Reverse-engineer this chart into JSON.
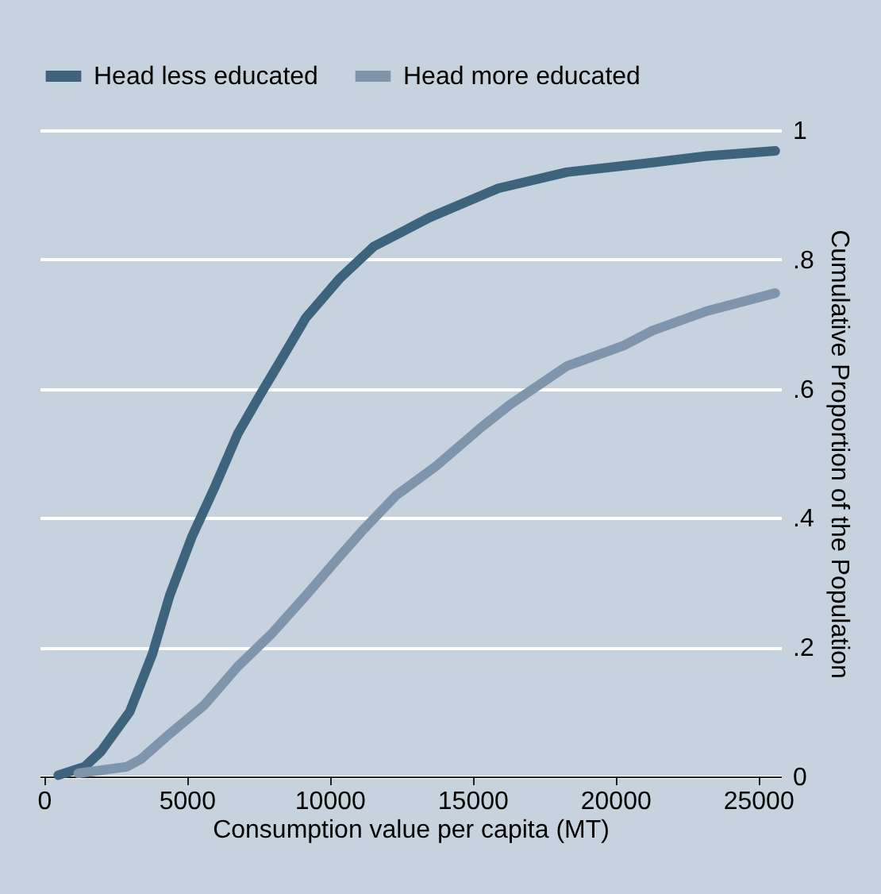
{
  "chart_data": {
    "type": "line",
    "xlabel": "Consumption value per capita (MT)",
    "ylabel": "Cumulative Proportion of the Population",
    "xlim": [
      -150,
      25800
    ],
    "xticks": [
      0,
      5000,
      10000,
      15000,
      20000,
      25000
    ],
    "ylim": [
      0,
      1
    ],
    "yticks": [
      {
        "value": 0,
        "label": "0"
      },
      {
        "value": 0.2,
        "label": ".2"
      },
      {
        "value": 0.4,
        "label": ".4"
      },
      {
        "value": 0.6,
        "label": ".6"
      },
      {
        "value": 0.8,
        "label": ".8"
      },
      {
        "value": 1,
        "label": "1"
      }
    ],
    "grid": "y",
    "legend": "top",
    "line_style": "solid",
    "marker": "none",
    "series": [
      {
        "name": "Head less educated",
        "color": "#3e647d",
        "x": [
          500,
          1420,
          2000,
          3000,
          3800,
          4400,
          5170,
          6000,
          6780,
          7560,
          8370,
          9170,
          10340,
          11540,
          13500,
          15900,
          18300,
          21300,
          23200,
          25600
        ],
        "values": [
          0.002,
          0.015,
          0.039,
          0.1,
          0.19,
          0.28,
          0.37,
          0.45,
          0.53,
          0.59,
          0.65,
          0.71,
          0.77,
          0.82,
          0.865,
          0.91,
          0.935,
          0.95,
          0.96,
          0.968
        ]
      },
      {
        "name": "Head more educated",
        "color": "#7f95ab",
        "x": [
          1200,
          2900,
          3400,
          4400,
          5600,
          6780,
          7950,
          9170,
          10340,
          11140,
          12330,
          13720,
          15300,
          16300,
          18300,
          20300,
          21300,
          23200,
          25600
        ],
        "values": [
          0.005,
          0.015,
          0.027,
          0.066,
          0.11,
          0.17,
          0.22,
          0.28,
          0.34,
          0.38,
          0.435,
          0.48,
          0.54,
          0.575,
          0.635,
          0.667,
          0.69,
          0.72,
          0.748
        ]
      }
    ]
  }
}
